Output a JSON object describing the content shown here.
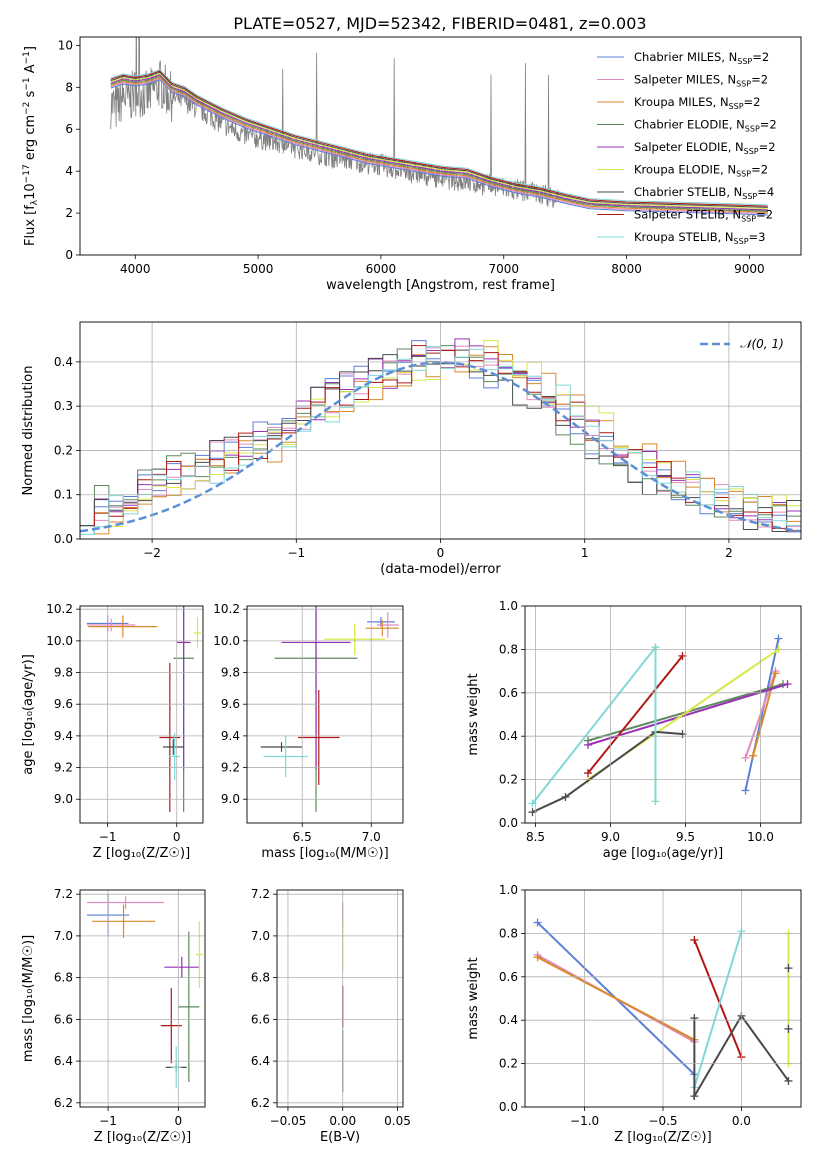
{
  "figure": {
    "title": "PLATE=0527, MJD=52342, FIBERID=0481, z=0.003"
  },
  "chart_data": [
    {
      "type": "line",
      "id": "spectrum",
      "xlabel": "wavelength [Angstrom, rest frame]",
      "ylabel_parts": {
        "pre": "Flux [f",
        "sub": "λ",
        "mid": "10",
        "sup1": "−17",
        "mid2": " erg cm",
        "sup2": "−2",
        "mid3": " s",
        "sup3": "−1",
        "mid4": " A",
        "sup4": "−1",
        "post": "]"
      },
      "xlim": [
        3550,
        9420
      ],
      "ylim": [
        0,
        10.4
      ],
      "xticks": [
        4000,
        5000,
        6000,
        7000,
        8000,
        9000
      ],
      "yticks": [
        0,
        2,
        4,
        6,
        8,
        10
      ],
      "grid": false,
      "legend_position": "top-right",
      "data_curve": {
        "x": [
          3800,
          3850,
          3900,
          3950,
          4000,
          4100,
          4200,
          4300,
          4400,
          4500,
          4600,
          4700,
          4800,
          4900,
          5000,
          5200,
          5400,
          5600,
          5800,
          6000,
          6200,
          6400,
          6600,
          6800,
          7000,
          7200,
          7400,
          7600,
          7800,
          8000,
          8200,
          8400,
          8600,
          8800,
          9000,
          9150
        ],
        "y": [
          7.2,
          7.0,
          7.6,
          7.4,
          7.8,
          7.6,
          8.2,
          7.5,
          7.4,
          7.0,
          6.7,
          6.3,
          6.0,
          5.7,
          5.6,
          5.3,
          5.0,
          4.7,
          4.5,
          4.3,
          4.0,
          3.8,
          3.6,
          3.4,
          3.2,
          3.0,
          2.8,
          2.5,
          2.4,
          2.35,
          2.3,
          2.25,
          2.2,
          2.15,
          2.1,
          2.1
        ]
      },
      "model_curve": {
        "x": [
          3800,
          3900,
          4000,
          4100,
          4200,
          4300,
          4400,
          4500,
          4700,
          4900,
          5100,
          5300,
          5500,
          5700,
          5900,
          6100,
          6300,
          6500,
          6700,
          6900,
          7100,
          7300,
          7500,
          7700,
          8000,
          8300,
          8600,
          8900,
          9150
        ],
        "y": [
          8.2,
          8.4,
          8.3,
          8.4,
          8.6,
          8.0,
          7.8,
          7.4,
          6.8,
          6.3,
          5.9,
          5.5,
          5.2,
          4.9,
          4.6,
          4.4,
          4.2,
          4.0,
          3.9,
          3.5,
          3.2,
          3.0,
          2.7,
          2.45,
          2.35,
          2.3,
          2.25,
          2.2,
          2.15
        ]
      },
      "series": [
        {
          "name": "Chabrier MILES",
          "nssp": "2",
          "color": "#5b7fd6"
        },
        {
          "name": "Salpeter MILES",
          "nssp": "2",
          "color": "#e08cc0"
        },
        {
          "name": "Kroupa MILES",
          "nssp": "2",
          "color": "#d88a2a"
        },
        {
          "name": "Chabrier ELODIE",
          "nssp": "2",
          "color": "#5f8a5f"
        },
        {
          "name": "Salpeter ELODIE",
          "nssp": "2",
          "color": "#9a30b8"
        },
        {
          "name": "Kroupa ELODIE",
          "nssp": "2",
          "color": "#d8e84a"
        },
        {
          "name": "Chabrier STELIB",
          "nssp": "4",
          "color": "#4a4a4a"
        },
        {
          "name": "Salpeter STELIB",
          "nssp": "2",
          "color": "#b01818"
        },
        {
          "name": "Kroupa STELIB",
          "nssp": "3",
          "color": "#80d8d8"
        }
      ]
    },
    {
      "type": "histogram",
      "id": "residuals",
      "xlabel": "(data-model)/error",
      "ylabel": "Normed distribution",
      "xlim": [
        -2.5,
        2.5
      ],
      "ylim": [
        0,
        0.49
      ],
      "xticks": [
        -2,
        -1,
        0,
        1,
        2
      ],
      "yticks": [
        0.0,
        0.1,
        0.2,
        0.3,
        0.4
      ],
      "grid": true,
      "legend": {
        "label": "𝒩(0, 1)",
        "color": "#5b8fd6",
        "position": "top-right"
      },
      "bin_width": 0.1,
      "base_values": [
        0.05,
        0.06,
        0.07,
        0.09,
        0.1,
        0.11,
        0.12,
        0.14,
        0.15,
        0.16,
        0.18,
        0.19,
        0.2,
        0.21,
        0.23,
        0.26,
        0.28,
        0.3,
        0.32,
        0.34,
        0.35,
        0.37,
        0.38,
        0.39,
        0.4,
        0.41,
        0.41,
        0.42,
        0.41,
        0.4,
        0.38,
        0.36,
        0.34,
        0.32,
        0.3,
        0.27,
        0.25,
        0.22,
        0.2,
        0.18,
        0.16,
        0.14,
        0.12,
        0.11,
        0.1,
        0.09,
        0.08,
        0.07,
        0.06,
        0.05
      ]
    },
    {
      "type": "errorbar",
      "id": "age-vs-Z",
      "xlabel": "Z [log₁₀(Z/Z☉)]",
      "ylabel": "age  [log₁₀(age/yr)]",
      "xlim": [
        -1.4,
        0.38
      ],
      "ylim": [
        8.85,
        10.22
      ],
      "xticks": [
        -1,
        0
      ],
      "yticks": [
        9.0,
        9.2,
        9.4,
        9.6,
        9.8,
        10.0,
        10.2
      ],
      "grid": true,
      "points": [
        {
          "x": -1.0,
          "xerr": 0.3,
          "y": 10.11,
          "yerr": 0.05,
          "color": "#5b7fd6"
        },
        {
          "x": -0.95,
          "xerr": 0.35,
          "y": 10.1,
          "yerr": 0.04,
          "color": "#e08cc0"
        },
        {
          "x": -0.78,
          "xerr": 0.5,
          "y": 10.09,
          "yerr": 0.07,
          "color": "#d88a2a"
        },
        {
          "x": 0.1,
          "xerr": 0.15,
          "y": 9.89,
          "yerr": 0.97,
          "color": "#5f8a5f"
        },
        {
          "x": 0.1,
          "xerr": 0.1,
          "y": 9.99,
          "yerr": 0.8,
          "color": "#9a30b8"
        },
        {
          "x": 0.3,
          "xerr": 0.05,
          "y": 10.05,
          "yerr": 0.1,
          "color": "#d8e84a"
        },
        {
          "x": -0.05,
          "xerr": 0.15,
          "y": 9.33,
          "yerr": 0.05,
          "color": "#4a4a4a"
        },
        {
          "x": -0.1,
          "xerr": 0.15,
          "y": 9.39,
          "yerr": 0.47,
          "color": "#b01818"
        },
        {
          "x": -0.03,
          "xerr": 0.08,
          "y": 9.27,
          "yerr": 0.15,
          "color": "#80d8d8"
        }
      ]
    },
    {
      "type": "errorbar",
      "id": "age-vs-mass",
      "xlabel": "mass [log₁₀(M/M☉)]",
      "xlim": [
        6.1,
        7.23
      ],
      "ylim": [
        8.85,
        10.22
      ],
      "xticks": [
        6.5,
        7.0
      ],
      "yticks": [
        9.0,
        9.2,
        9.4,
        9.6,
        9.8,
        10.0,
        10.2
      ],
      "grid": true,
      "points": [
        {
          "x": 7.07,
          "xerr": 0.1,
          "y": 10.12,
          "yerr": 0.03,
          "color": "#5b7fd6"
        },
        {
          "x": 7.12,
          "xerr": 0.08,
          "y": 10.1,
          "yerr": 0.08,
          "color": "#e08cc0"
        },
        {
          "x": 7.08,
          "xerr": 0.12,
          "y": 10.08,
          "yerr": 0.05,
          "color": "#d88a2a"
        },
        {
          "x": 6.6,
          "xerr": 0.3,
          "y": 9.89,
          "yerr": 0.97,
          "color": "#5f8a5f"
        },
        {
          "x": 6.6,
          "xerr": 0.25,
          "y": 9.99,
          "yerr": 0.8,
          "color": "#9a30b8"
        },
        {
          "x": 6.88,
          "xerr": 0.22,
          "y": 10.01,
          "yerr": 0.1,
          "color": "#d8e84a"
        },
        {
          "x": 6.35,
          "xerr": 0.15,
          "y": 9.33,
          "yerr": 0.03,
          "color": "#4a4a4a"
        },
        {
          "x": 6.62,
          "xerr": 0.15,
          "y": 9.39,
          "yerr": 0.3,
          "color": "#b01818"
        },
        {
          "x": 6.38,
          "xerr": 0.16,
          "y": 9.27,
          "yerr": 0.13,
          "color": "#80d8d8"
        }
      ]
    },
    {
      "type": "line",
      "id": "weight-vs-age",
      "xlabel": "age  [log₁₀(age/yr)]",
      "ylabel": "mass weight",
      "xlim": [
        8.43,
        10.27
      ],
      "ylim": [
        0,
        1.0
      ],
      "xticks": [
        8.5,
        9.0,
        9.5,
        10.0
      ],
      "yticks": [
        0.0,
        0.2,
        0.4,
        0.6,
        0.8,
        1.0
      ],
      "grid": true,
      "series": [
        {
          "color": "#5b7fd6",
          "x": [
            9.9,
            10.12
          ],
          "y": [
            0.15,
            0.85
          ]
        },
        {
          "color": "#e08cc0",
          "x": [
            9.9,
            10.1
          ],
          "y": [
            0.3,
            0.7
          ]
        },
        {
          "color": "#d88a2a",
          "x": [
            9.95,
            10.1
          ],
          "y": [
            0.31,
            0.69
          ]
        },
        {
          "color": "#5f8a5f",
          "x": [
            8.85,
            10.15
          ],
          "y": [
            0.38,
            0.64
          ]
        },
        {
          "color": "#9a30b8",
          "x": [
            8.85,
            10.18
          ],
          "y": [
            0.36,
            0.64
          ]
        },
        {
          "color": "#d8e84a",
          "x": [
            8.85,
            10.12
          ],
          "y": [
            0.2,
            0.8
          ]
        },
        {
          "color": "#4a4a4a",
          "x": [
            8.48,
            8.7,
            9.3,
            9.48
          ],
          "y": [
            0.05,
            0.12,
            0.42,
            0.41
          ]
        },
        {
          "color": "#b01818",
          "x": [
            8.85,
            9.48
          ],
          "y": [
            0.23,
            0.77
          ]
        },
        {
          "color": "#80d8d8",
          "x": [
            8.48,
            9.3,
            9.3
          ],
          "y": [
            0.09,
            0.81,
            0.1
          ]
        }
      ]
    },
    {
      "type": "errorbar",
      "id": "mass-vs-Z",
      "xlabel": "Z [log₁₀(Z/Z☉)]",
      "ylabel": "mass [log₁₀(M/M☉)]",
      "xlim": [
        -1.4,
        0.38
      ],
      "ylim": [
        6.18,
        7.22
      ],
      "xticks": [
        -1,
        0
      ],
      "yticks": [
        6.2,
        6.4,
        6.6,
        6.8,
        7.0,
        7.2
      ],
      "grid": true,
      "points": [
        {
          "x": -1.0,
          "xerr": 0.3,
          "y": 7.1,
          "yerr": 0.1,
          "color": "#5b7fd6"
        },
        {
          "x": -0.75,
          "xerr": 0.55,
          "y": 7.16,
          "yerr": 0.03,
          "color": "#e08cc0"
        },
        {
          "x": -0.78,
          "xerr": 0.45,
          "y": 7.07,
          "yerr": 0.08,
          "color": "#d88a2a"
        },
        {
          "x": 0.15,
          "xerr": 0.15,
          "y": 6.66,
          "yerr": 0.36,
          "color": "#5f8a5f"
        },
        {
          "x": 0.05,
          "xerr": 0.25,
          "y": 6.85,
          "yerr": 0.05,
          "color": "#9a30b8"
        },
        {
          "x": 0.3,
          "xerr": 0.05,
          "y": 6.91,
          "yerr": 0.16,
          "color": "#d8e84a"
        },
        {
          "x": -0.03,
          "xerr": 0.15,
          "y": 6.37,
          "yerr": 0.02,
          "color": "#4a4a4a"
        },
        {
          "x": -0.1,
          "xerr": 0.15,
          "y": 6.57,
          "yerr": 0.18,
          "color": "#b01818"
        },
        {
          "x": -0.03,
          "xerr": 0.07,
          "y": 6.37,
          "yerr": 0.1,
          "color": "#80d8d8"
        }
      ]
    },
    {
      "type": "errorbar",
      "id": "mass-vs-ebv",
      "xlabel": "E(B-V)",
      "xlim": [
        -0.06,
        0.055
      ],
      "ylim": [
        6.18,
        7.22
      ],
      "xticks": [
        -0.05,
        0.0,
        0.05
      ],
      "xtick_labels": [
        "−0.05",
        "0.00",
        "0.05"
      ],
      "yticks": [
        6.2,
        6.4,
        6.6,
        6.8,
        7.0,
        7.2
      ],
      "grid": true,
      "points": [
        {
          "x": 0.0,
          "xerr": 0.0,
          "y": 7.1,
          "yerr": 0.06,
          "color": "#e08cc0"
        },
        {
          "x": 0.0,
          "xerr": 0.0,
          "y": 6.95,
          "yerr": 0.12,
          "color": "#d8e84a"
        },
        {
          "x": 0.0,
          "xerr": 0.0,
          "y": 6.66,
          "yerr": 0.1,
          "color": "#b01818"
        },
        {
          "x": 0.0,
          "xerr": 0.0,
          "y": 6.4,
          "yerr": 0.15,
          "color": "#5f8a5f"
        }
      ]
    },
    {
      "type": "line",
      "id": "weight-vs-Z",
      "xlabel": "Z [log₁₀(Z/Z☉)]",
      "ylabel": "mass weight",
      "xlim": [
        -1.38,
        0.38
      ],
      "ylim": [
        0,
        1.0
      ],
      "xticks": [
        -1.0,
        -0.5,
        0.0
      ],
      "xtick_labels": [
        "−1.0",
        "−0.5",
        "0.0"
      ],
      "yticks": [
        0.0,
        0.2,
        0.4,
        0.6,
        0.8,
        1.0
      ],
      "grid": true,
      "series": [
        {
          "color": "#5b7fd6",
          "x": [
            -1.3,
            -0.3
          ],
          "y": [
            0.85,
            0.15
          ]
        },
        {
          "color": "#e08cc0",
          "x": [
            -1.3,
            -0.3
          ],
          "y": [
            0.7,
            0.3
          ]
        },
        {
          "color": "#d88a2a",
          "x": [
            -1.3,
            -0.3
          ],
          "y": [
            0.69,
            0.31
          ]
        },
        {
          "color": "#b01818",
          "x": [
            -0.3,
            0.0
          ],
          "y": [
            0.77,
            0.23
          ]
        },
        {
          "color": "#80d8d8",
          "x": [
            -0.3,
            0.0
          ],
          "y": [
            0.09,
            0.81
          ]
        },
        {
          "color": "#4a4a4a",
          "x": [
            -0.3,
            -0.3,
            0.0,
            0.3
          ],
          "y": [
            0.41,
            0.05,
            0.42,
            0.12
          ]
        },
        {
          "color": "#d8e84a",
          "x": [
            0.3,
            0.3
          ],
          "y": [
            0.2,
            0.8
          ]
        }
      ],
      "markers": [
        {
          "color": "#4a4a4a",
          "x": 0.3,
          "y": 0.64
        },
        {
          "color": "#4a4a4a",
          "x": 0.3,
          "y": 0.36
        }
      ]
    }
  ]
}
